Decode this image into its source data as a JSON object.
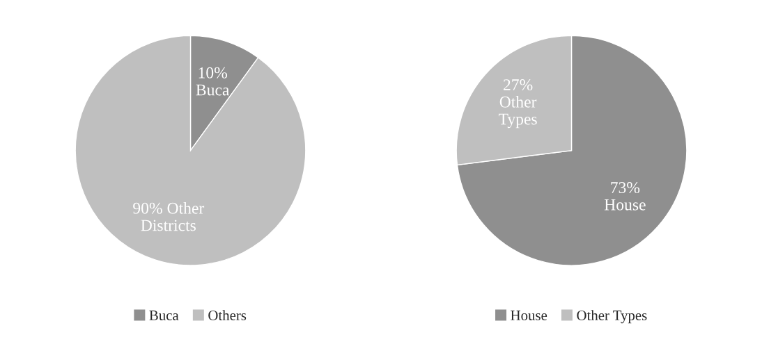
{
  "chart_data": [
    {
      "type": "pie",
      "categories": [
        "Buca",
        "Others"
      ],
      "values": [
        10,
        90
      ],
      "colors": [
        "#8f8f8f",
        "#bfbfbf"
      ],
      "value_labels": [
        "10%\nBuca",
        "90% Other\nDistricts"
      ],
      "legend": "bottom"
    },
    {
      "type": "pie",
      "categories": [
        "House",
        "Other Types"
      ],
      "values": [
        73,
        27
      ],
      "colors": [
        "#8f8f8f",
        "#bfbfbf"
      ],
      "value_labels": [
        "73%\nHouse",
        "27%\nOther\nTypes"
      ],
      "legend": "bottom"
    }
  ]
}
